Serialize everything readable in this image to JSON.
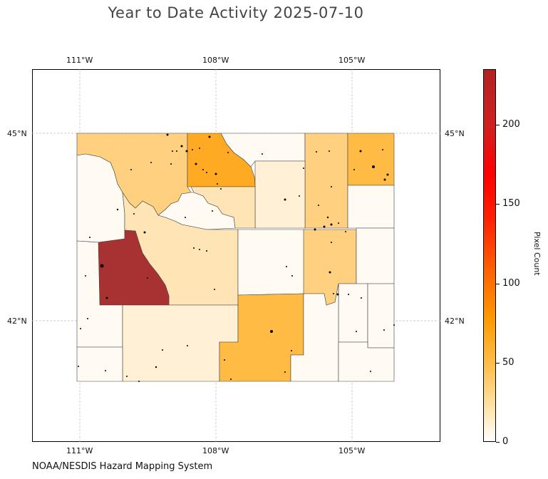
{
  "title": "Year to Date Activity 2025-07-10",
  "source_credit": "NOAA/NESDIS Hazard Mapping System",
  "map": {
    "lon_ticks": [
      "111°W",
      "108°W",
      "105°W"
    ],
    "lat_ticks": [
      "45°N",
      "42°N"
    ],
    "colors": {
      "pale": "#fffaf2",
      "light": "#fff0d6",
      "tan": "#ffe4b5",
      "light_orange": "#ffd080",
      "orange": "#ffbb44",
      "dark_orange": "#ffaa22",
      "brick": "#a83232"
    }
  },
  "colorbar": {
    "title": "Pixel Count",
    "tick_labels": [
      "0",
      "50",
      "100",
      "150",
      "200"
    ],
    "range": [
      0,
      235
    ]
  }
}
